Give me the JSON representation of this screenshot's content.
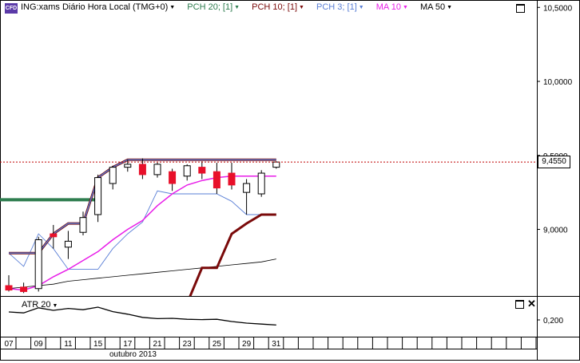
{
  "header": {
    "badge": "CFD",
    "symbol": "ING:xams Diário Hora Local (TMG+0)",
    "indicators": [
      {
        "label": "PCH 20; [1]",
        "color": "#2e7d4f"
      },
      {
        "label": "PCH 10; [1]",
        "color": "#7a0a0a"
      },
      {
        "label": "PCH 3; [1]",
        "color": "#5a7fd6"
      },
      {
        "label": "MA 10",
        "color": "#e81ee8"
      },
      {
        "label": "MA 50",
        "color": "#000000"
      }
    ]
  },
  "subpanel": {
    "title": "ATR 20",
    "tick": "0,200"
  },
  "price_tag": "9,4550",
  "x_axis": {
    "month_label": "outubro 2013"
  },
  "chart_data": [
    {
      "type": "candlestick",
      "series_name": "ING:xams",
      "ylim": [
        8.55,
        10.55
      ],
      "y_ticks": [
        {
          "v": 10.5,
          "label": "10,5000"
        },
        {
          "v": 10.0,
          "label": "10,0000"
        },
        {
          "v": 9.5,
          "label": "9,5000"
        },
        {
          "v": 9.0,
          "label": "9,0000"
        }
      ],
      "x_tick_labels": [
        {
          "i": 0,
          "label": "07"
        },
        {
          "i": 2,
          "label": "09"
        },
        {
          "i": 4,
          "label": "11"
        },
        {
          "i": 6,
          "label": "15"
        },
        {
          "i": 8,
          "label": "17"
        },
        {
          "i": 10,
          "label": "21"
        },
        {
          "i": 12,
          "label": "23"
        },
        {
          "i": 14,
          "label": "25"
        },
        {
          "i": 16,
          "label": "29"
        },
        {
          "i": 18,
          "label": "31"
        }
      ],
      "last_price": 9.455,
      "candles": [
        {
          "o": 8.62,
          "h": 8.69,
          "l": 8.58,
          "c": 8.59
        },
        {
          "o": 8.61,
          "h": 8.64,
          "l": 8.57,
          "c": 8.58
        },
        {
          "o": 8.6,
          "h": 8.95,
          "l": 8.58,
          "c": 8.93
        },
        {
          "o": 8.97,
          "h": 9.03,
          "l": 8.87,
          "c": 8.95
        },
        {
          "o": 8.88,
          "h": 8.99,
          "l": 8.8,
          "c": 8.92
        },
        {
          "o": 8.98,
          "h": 9.12,
          "l": 8.96,
          "c": 9.08
        },
        {
          "o": 9.1,
          "h": 9.37,
          "l": 9.05,
          "c": 9.35
        },
        {
          "o": 9.31,
          "h": 9.43,
          "l": 9.27,
          "c": 9.42
        },
        {
          "o": 9.42,
          "h": 9.47,
          "l": 9.39,
          "c": 9.44
        },
        {
          "o": 9.44,
          "h": 9.48,
          "l": 9.34,
          "c": 9.37
        },
        {
          "o": 9.37,
          "h": 9.45,
          "l": 9.35,
          "c": 9.44
        },
        {
          "o": 9.39,
          "h": 9.41,
          "l": 9.26,
          "c": 9.31
        },
        {
          "o": 9.36,
          "h": 9.44,
          "l": 9.33,
          "c": 9.43
        },
        {
          "o": 9.42,
          "h": 9.46,
          "l": 9.34,
          "c": 9.38
        },
        {
          "o": 9.39,
          "h": 9.45,
          "l": 9.24,
          "c": 9.28
        },
        {
          "o": 9.38,
          "h": 9.45,
          "l": 9.27,
          "c": 9.3
        },
        {
          "o": 9.25,
          "h": 9.34,
          "l": 9.1,
          "c": 9.31
        },
        {
          "o": 9.24,
          "h": 9.4,
          "l": 9.22,
          "c": 9.38
        },
        {
          "o": 9.42,
          "h": 9.46,
          "l": 9.41,
          "c": 9.455
        }
      ],
      "series": [
        {
          "name": "PCH 20; [1]",
          "color": "#2e7d4f",
          "values": [
            null,
            null,
            null,
            null,
            null,
            null,
            9.2,
            null,
            null,
            null,
            null,
            null,
            null,
            null,
            null,
            null,
            null,
            null,
            null
          ]
        },
        {
          "name": "PCH 10; [1]",
          "color": "#7a0a0a",
          "values": [
            8.84,
            8.84,
            8.84,
            8.97,
            9.04,
            9.04,
            9.35,
            9.42,
            9.47,
            9.47,
            9.47,
            9.47,
            9.47,
            9.47,
            9.47,
            9.47,
            9.47,
            9.47,
            9.47
          ]
        },
        {
          "name": "PCH 3; [1]",
          "color": "#5a7fd6",
          "values": [
            8.84,
            8.84,
            8.84,
            8.97,
            9.04,
            9.04,
            9.35,
            9.42,
            9.47,
            9.47,
            9.47,
            9.47,
            9.47,
            9.47,
            9.47,
            9.47,
            9.47,
            9.47,
            9.47
          ]
        },
        {
          "name": "PCH 3; [1] lower",
          "color": "#5a7fd6",
          "values": [
            8.84,
            8.75,
            8.97,
            8.87,
            8.73,
            8.73,
            8.73,
            8.87,
            8.97,
            9.05,
            9.26,
            9.24,
            9.24,
            9.24,
            9.24,
            9.19,
            9.1,
            9.1,
            9.1
          ]
        },
        {
          "name": "MA 10",
          "color": "#e81ee8",
          "values": [
            8.6,
            8.59,
            8.62,
            8.68,
            8.73,
            8.79,
            8.85,
            8.93,
            9.0,
            9.06,
            9.16,
            9.24,
            9.3,
            9.33,
            9.35,
            9.36,
            9.36,
            9.36,
            9.36
          ]
        },
        {
          "name": "MA 50",
          "color": "#000000",
          "values": [
            8.6,
            8.61,
            8.62,
            8.63,
            8.65,
            8.66,
            8.67,
            8.68,
            8.69,
            8.7,
            8.71,
            8.72,
            8.73,
            8.74,
            8.75,
            8.76,
            8.77,
            8.78,
            8.8
          ]
        },
        {
          "name": "PCH 10; [1] lower",
          "color": "#7a0a0a",
          "values": [
            null,
            null,
            null,
            null,
            null,
            null,
            null,
            null,
            null,
            null,
            null,
            null,
            8.5,
            8.74,
            8.74,
            8.97,
            9.04,
            9.1,
            9.1
          ]
        }
      ]
    },
    {
      "type": "line",
      "series_name": "ATR 20",
      "ylim": [
        0.15,
        0.27
      ],
      "y_ticks": [
        {
          "v": 0.2,
          "label": "0,200"
        }
      ],
      "values": [
        0.225,
        0.222,
        0.238,
        0.23,
        0.236,
        0.232,
        0.24,
        0.226,
        0.218,
        0.208,
        0.204,
        0.205,
        0.202,
        0.201,
        0.202,
        0.195,
        0.19,
        0.187,
        0.184
      ]
    }
  ]
}
